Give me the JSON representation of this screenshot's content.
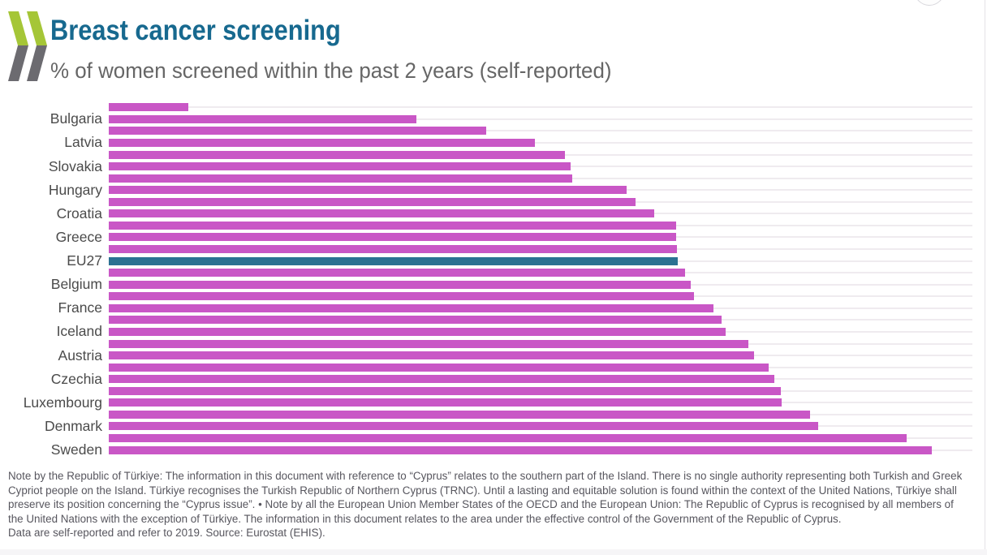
{
  "header": {
    "title": "Breast cancer screening",
    "subtitle": "% of women screened within the past 2 years (self-reported)",
    "logo_icon": "oecd-double-chevron"
  },
  "chart_data": {
    "type": "bar",
    "orientation": "horizontal",
    "title": "Breast cancer screening",
    "subtitle": "% of women screened within the past 2 years (self-reported)",
    "unit": "%",
    "xlim": [
      0,
      100
    ],
    "grid": "light track lines per row, no axis tick labels shown",
    "legend": "none",
    "labeled_every_other_bar": true,
    "categories": [
      "",
      "Bulgaria",
      "",
      "Latvia",
      "",
      "Slovakia",
      "",
      "Hungary",
      "",
      "Croatia",
      "",
      "Greece",
      "",
      "EU27",
      "",
      "Belgium",
      "",
      "France",
      "",
      "Iceland",
      "",
      "Austria",
      "",
      "Czechia",
      "",
      "Luxembourg",
      "",
      "Denmark",
      "",
      "Sweden"
    ],
    "values": [
      9.2,
      35.6,
      43.7,
      49.3,
      52.8,
      53.5,
      53.7,
      60.0,
      61.0,
      63.2,
      65.7,
      65.7,
      65.8,
      65.9,
      66.7,
      67.4,
      67.8,
      70.0,
      71.0,
      71.4,
      74.1,
      74.7,
      76.4,
      77.1,
      77.8,
      77.9,
      81.2,
      82.1,
      92.4,
      95.3
    ],
    "highlight_index": 13,
    "highlight_label": "EU27"
  },
  "colors": {
    "bar": "#c957c6",
    "highlight_bar": "#2b7192",
    "track": "#efebef",
    "title": "#17698f",
    "subtitle": "#666666",
    "label": "#4b4b4b",
    "note_text": "#57565e",
    "logo_green": "#a5c637",
    "logo_gray": "#6c6b70"
  },
  "footer": {
    "note": "Note by the Republic of Türkiye: The information in this document with reference to “Cyprus” relates to the southern part of the Island. There is no single authority representing both Turkish and Greek Cypriot people on the Island. Türkiye recognises the Turkish Republic of Northern Cyprus (TRNC). Until a lasting and equitable solution is found within the context of the United Nations, Türkiye shall preserve its position concerning the “Cyprus issue”. • Note by all the European Union Member States of the OECD and the European Union: The Republic of Cyprus is recognised by all members of the United Nations with the exception of Türkiye. The information in this document relates to the area under the effective control of the Government of the Republic of Cyprus.",
    "source": "Data are self-reported and refer to 2019. Source: Eurostat (EHIS)."
  }
}
